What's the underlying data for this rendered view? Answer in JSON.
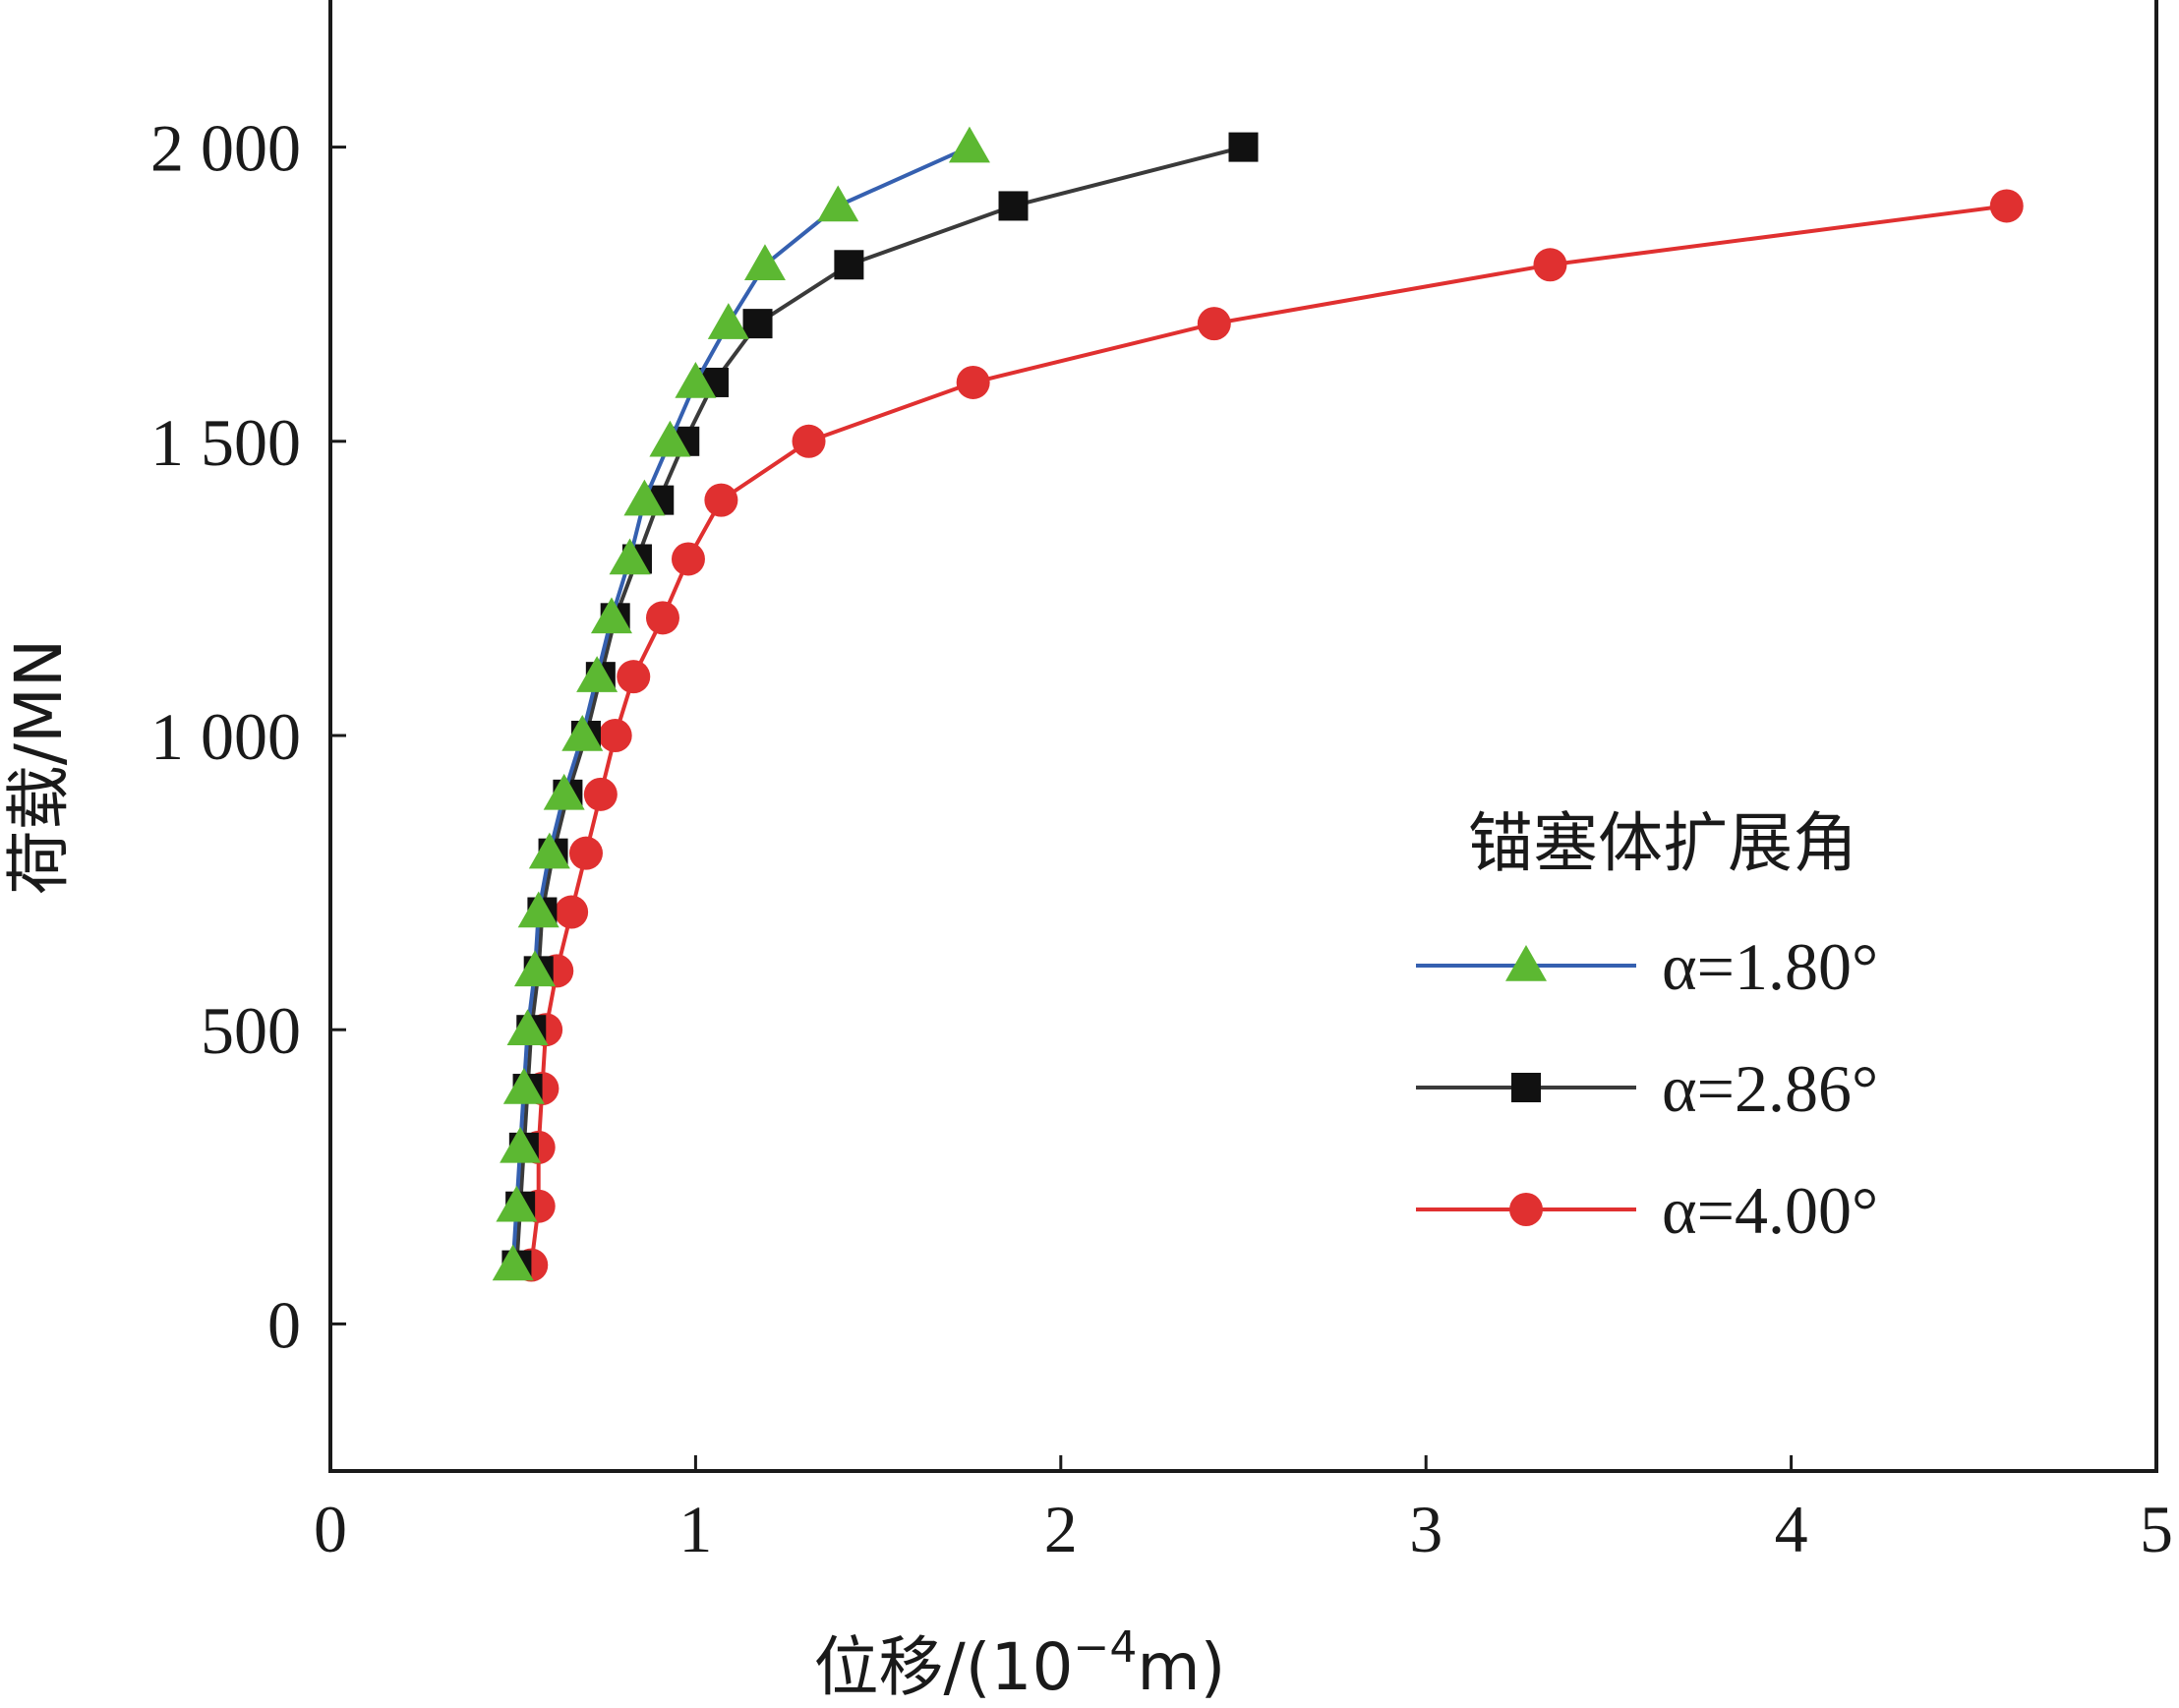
{
  "chart_data": {
    "type": "line",
    "title": "",
    "xlabel": "位移/(10",
    "xlabel_exponent": "−4",
    "xlabel_tail": "m)",
    "ylabel": "荷载/MN",
    "xlim": [
      0,
      5
    ],
    "ylim": [
      -250,
      2250
    ],
    "xticks": [
      0,
      1,
      2,
      3,
      4,
      5
    ],
    "xtick_labels": [
      "0",
      "1",
      "2",
      "3",
      "4",
      "5"
    ],
    "yticks": [
      0,
      500,
      1000,
      1500,
      2000
    ],
    "ytick_labels": [
      "0",
      "500",
      "1 000",
      "1 500",
      "2 000"
    ],
    "grid": false,
    "legend": {
      "title": "锚塞体扩展角",
      "placement": "right"
    },
    "series": [
      {
        "name": "α=1.80°",
        "color": "#3560b0",
        "marker": "triangle",
        "marker_color": "#5cb832",
        "x": [
          0.5,
          0.51,
          0.52,
          0.53,
          0.54,
          0.56,
          0.57,
          0.6,
          0.64,
          0.69,
          0.73,
          0.77,
          0.82,
          0.86,
          0.93,
          1.0,
          1.09,
          1.19,
          1.39,
          1.75
        ],
        "y": [
          100,
          200,
          300,
          400,
          500,
          600,
          700,
          800,
          900,
          1000,
          1100,
          1200,
          1300,
          1400,
          1500,
          1600,
          1700,
          1800,
          1900,
          2000
        ]
      },
      {
        "name": "α=2.86°",
        "color": "#3a3a3a",
        "marker": "square",
        "marker_color": "#111111",
        "x": [
          0.51,
          0.52,
          0.53,
          0.54,
          0.55,
          0.57,
          0.58,
          0.61,
          0.65,
          0.7,
          0.74,
          0.78,
          0.84,
          0.9,
          0.97,
          1.05,
          1.17,
          1.42,
          1.87,
          2.5
        ],
        "y": [
          100,
          200,
          300,
          400,
          500,
          600,
          700,
          800,
          900,
          1000,
          1100,
          1200,
          1300,
          1400,
          1500,
          1600,
          1700,
          1800,
          1900,
          2000
        ]
      },
      {
        "name": "α=4.00°",
        "color": "#e03030",
        "marker": "circle",
        "marker_color": "#e03030",
        "x": [
          0.55,
          0.57,
          0.57,
          0.58,
          0.59,
          0.62,
          0.66,
          0.7,
          0.74,
          0.78,
          0.83,
          0.91,
          0.98,
          1.07,
          1.31,
          1.76,
          2.42,
          3.34,
          4.59
        ],
        "y": [
          100,
          200,
          300,
          400,
          500,
          600,
          700,
          800,
          900,
          1000,
          1100,
          1200,
          1300,
          1400,
          1500,
          1600,
          1700,
          1800,
          1900
        ]
      }
    ]
  }
}
